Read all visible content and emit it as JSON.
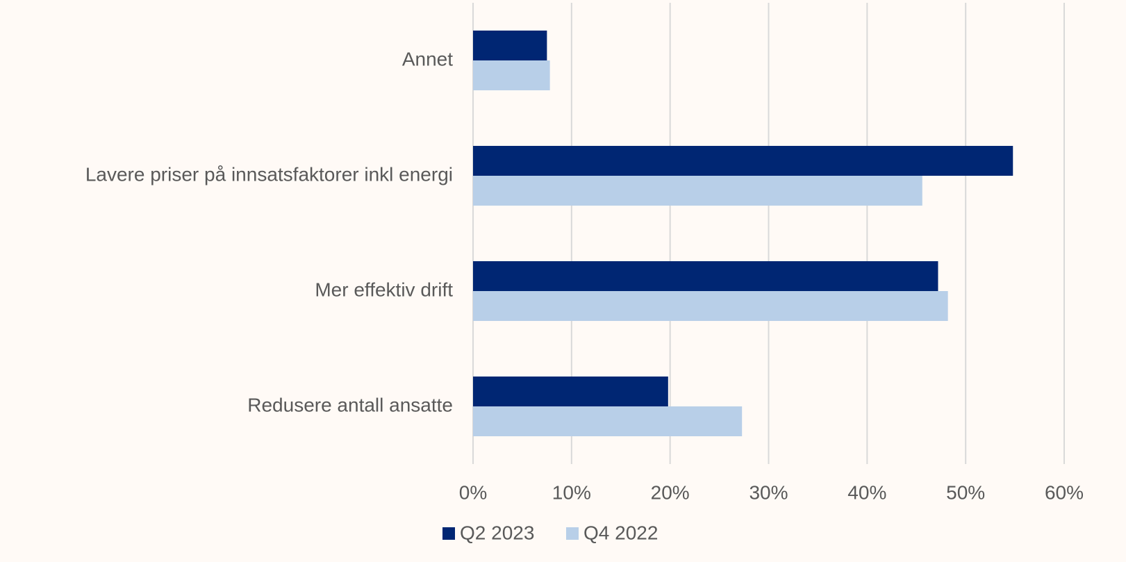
{
  "chart_data": {
    "type": "hbar",
    "categories": [
      "Annet",
      "Lavere priser på innsatsfaktorer inkl energi",
      "Mer effektiv drift",
      "Redusere antall ansatte"
    ],
    "series": [
      {
        "name": "Q2 2023",
        "color": "#002673",
        "values": [
          7.5,
          54.8,
          47.2,
          19.8
        ]
      },
      {
        "name": "Q4 2022",
        "color": "#b8cfe8",
        "values": [
          7.8,
          45.6,
          48.2,
          27.3
        ]
      }
    ],
    "xlim": [
      0,
      60
    ],
    "xticks": [
      {
        "value": 0,
        "label": "0%"
      },
      {
        "value": 10,
        "label": "10%"
      },
      {
        "value": 20,
        "label": "20%"
      },
      {
        "value": 30,
        "label": "30%"
      },
      {
        "value": 40,
        "label": "40%"
      },
      {
        "value": 50,
        "label": "50%"
      },
      {
        "value": 60,
        "label": "60%"
      }
    ],
    "grid": true,
    "legend": "bottom"
  }
}
